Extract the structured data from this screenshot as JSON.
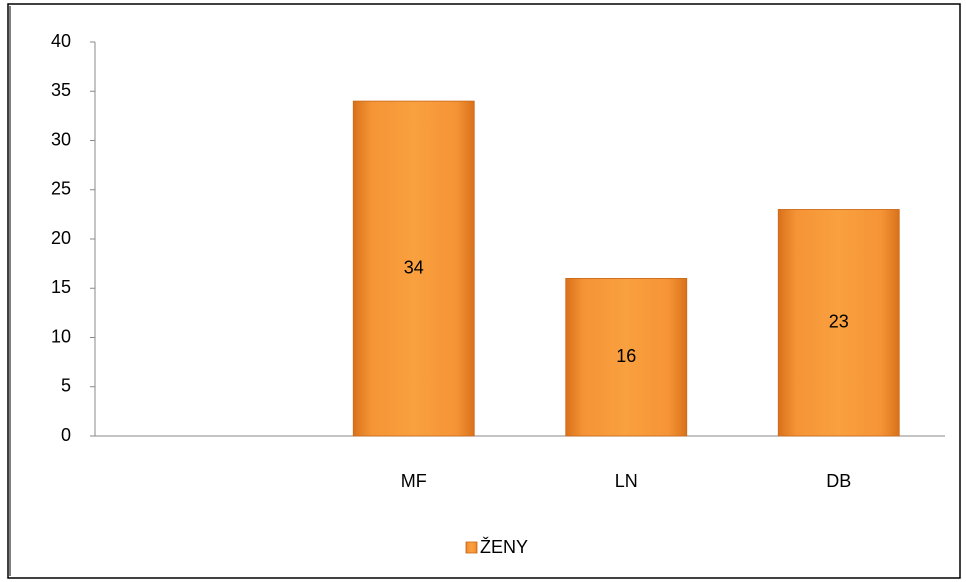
{
  "chart_data": {
    "type": "bar",
    "categories": [
      null,
      "MF",
      "LN",
      "DB"
    ],
    "series": [
      {
        "name": "ŽENY",
        "color": "#f28c28",
        "values": [
          null,
          34,
          16,
          23
        ]
      }
    ],
    "ylim": [
      0,
      40
    ],
    "yticks": [
      0,
      5,
      10,
      15,
      20,
      25,
      30,
      35,
      40
    ],
    "grid": false,
    "data_labels": true,
    "legend": "bottom"
  }
}
